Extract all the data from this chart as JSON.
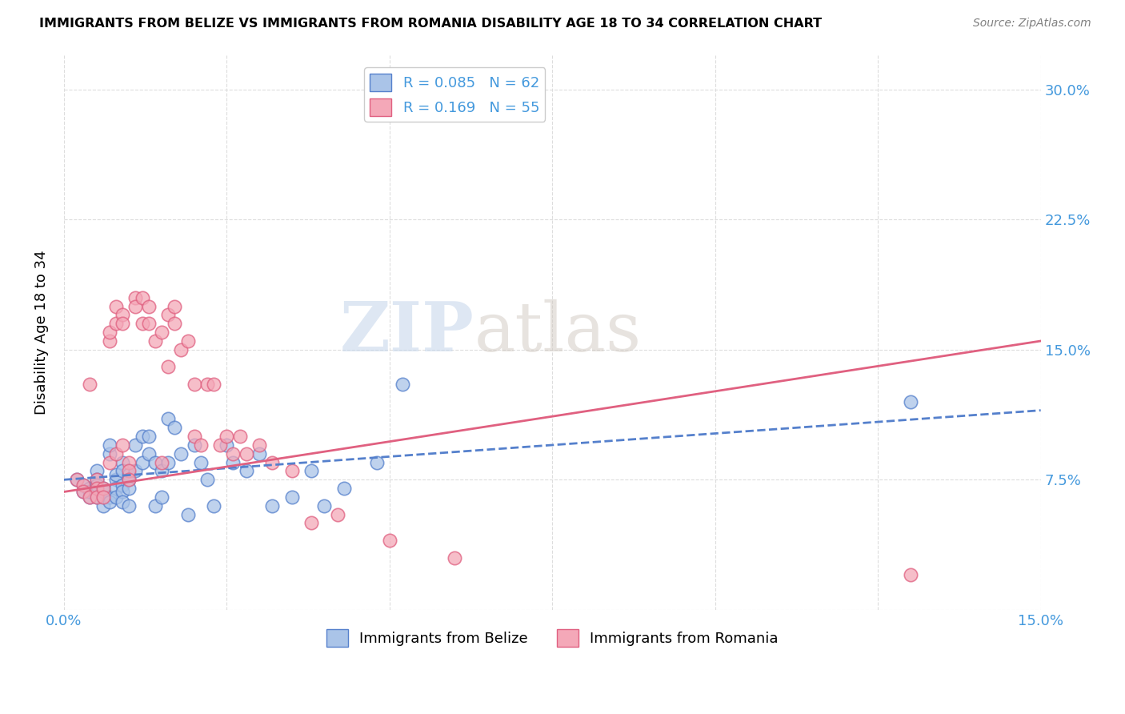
{
  "title": "IMMIGRANTS FROM BELIZE VS IMMIGRANTS FROM ROMANIA DISABILITY AGE 18 TO 34 CORRELATION CHART",
  "source": "Source: ZipAtlas.com",
  "ylabel": "Disability Age 18 to 34",
  "xlim": [
    0.0,
    0.15
  ],
  "ylim": [
    0.0,
    0.32
  ],
  "xticks": [
    0.0,
    0.025,
    0.05,
    0.075,
    0.1,
    0.125,
    0.15
  ],
  "xticklabels": [
    "0.0%",
    "",
    "",
    "",
    "",
    "",
    "15.0%"
  ],
  "yticks": [
    0.0,
    0.075,
    0.15,
    0.225,
    0.3
  ],
  "yticklabels": [
    "",
    "7.5%",
    "15.0%",
    "22.5%",
    "30.0%"
  ],
  "watermark_zip": "ZIP",
  "watermark_atlas": "atlas",
  "legend_r1": "R = 0.085",
  "legend_n1": "N = 62",
  "legend_r2": "R = 0.169",
  "legend_n2": "N = 55",
  "color_belize": "#aac4e8",
  "color_romania": "#f4a8b8",
  "color_belize_edge": "#5580cc",
  "color_romania_edge": "#e06080",
  "color_belize_line": "#5580cc",
  "color_romania_line": "#e06080",
  "color_axis_labels": "#4499dd",
  "belize_x": [
    0.002,
    0.003,
    0.003,
    0.004,
    0.004,
    0.004,
    0.005,
    0.005,
    0.005,
    0.005,
    0.006,
    0.006,
    0.006,
    0.006,
    0.007,
    0.007,
    0.007,
    0.007,
    0.008,
    0.008,
    0.008,
    0.008,
    0.009,
    0.009,
    0.009,
    0.009,
    0.009,
    0.01,
    0.01,
    0.01,
    0.01,
    0.011,
    0.011,
    0.012,
    0.012,
    0.013,
    0.013,
    0.014,
    0.014,
    0.015,
    0.015,
    0.016,
    0.016,
    0.017,
    0.018,
    0.019,
    0.02,
    0.021,
    0.022,
    0.023,
    0.025,
    0.026,
    0.028,
    0.03,
    0.032,
    0.035,
    0.038,
    0.04,
    0.043,
    0.048,
    0.052,
    0.13
  ],
  "belize_y": [
    0.075,
    0.068,
    0.072,
    0.07,
    0.065,
    0.068,
    0.08,
    0.075,
    0.072,
    0.065,
    0.065,
    0.068,
    0.07,
    0.06,
    0.09,
    0.095,
    0.065,
    0.062,
    0.075,
    0.078,
    0.07,
    0.065,
    0.085,
    0.08,
    0.072,
    0.068,
    0.062,
    0.078,
    0.075,
    0.07,
    0.06,
    0.095,
    0.08,
    0.1,
    0.085,
    0.1,
    0.09,
    0.085,
    0.06,
    0.08,
    0.065,
    0.11,
    0.085,
    0.105,
    0.09,
    0.055,
    0.095,
    0.085,
    0.075,
    0.06,
    0.095,
    0.085,
    0.08,
    0.09,
    0.06,
    0.065,
    0.08,
    0.06,
    0.07,
    0.085,
    0.13,
    0.12
  ],
  "romania_x": [
    0.002,
    0.003,
    0.003,
    0.004,
    0.004,
    0.005,
    0.005,
    0.005,
    0.006,
    0.006,
    0.007,
    0.007,
    0.007,
    0.008,
    0.008,
    0.008,
    0.009,
    0.009,
    0.009,
    0.01,
    0.01,
    0.01,
    0.011,
    0.011,
    0.012,
    0.012,
    0.013,
    0.013,
    0.014,
    0.015,
    0.015,
    0.016,
    0.016,
    0.017,
    0.017,
    0.018,
    0.019,
    0.02,
    0.02,
    0.021,
    0.022,
    0.023,
    0.024,
    0.025,
    0.026,
    0.027,
    0.028,
    0.03,
    0.032,
    0.035,
    0.038,
    0.042,
    0.05,
    0.06,
    0.13
  ],
  "romania_y": [
    0.075,
    0.072,
    0.068,
    0.065,
    0.13,
    0.075,
    0.07,
    0.065,
    0.07,
    0.065,
    0.155,
    0.16,
    0.085,
    0.165,
    0.175,
    0.09,
    0.17,
    0.165,
    0.095,
    0.085,
    0.08,
    0.075,
    0.18,
    0.175,
    0.18,
    0.165,
    0.175,
    0.165,
    0.155,
    0.16,
    0.085,
    0.17,
    0.14,
    0.175,
    0.165,
    0.15,
    0.155,
    0.13,
    0.1,
    0.095,
    0.13,
    0.13,
    0.095,
    0.1,
    0.09,
    0.1,
    0.09,
    0.095,
    0.085,
    0.08,
    0.05,
    0.055,
    0.04,
    0.03,
    0.02
  ],
  "grid_color": "#dddddd",
  "background_color": "#ffffff",
  "trendline_belize_x0": 0.0,
  "trendline_belize_y0": 0.075,
  "trendline_belize_x1": 0.15,
  "trendline_belize_y1": 0.115,
  "trendline_romania_x0": 0.0,
  "trendline_romania_y0": 0.068,
  "trendline_romania_x1": 0.15,
  "trendline_romania_y1": 0.155
}
